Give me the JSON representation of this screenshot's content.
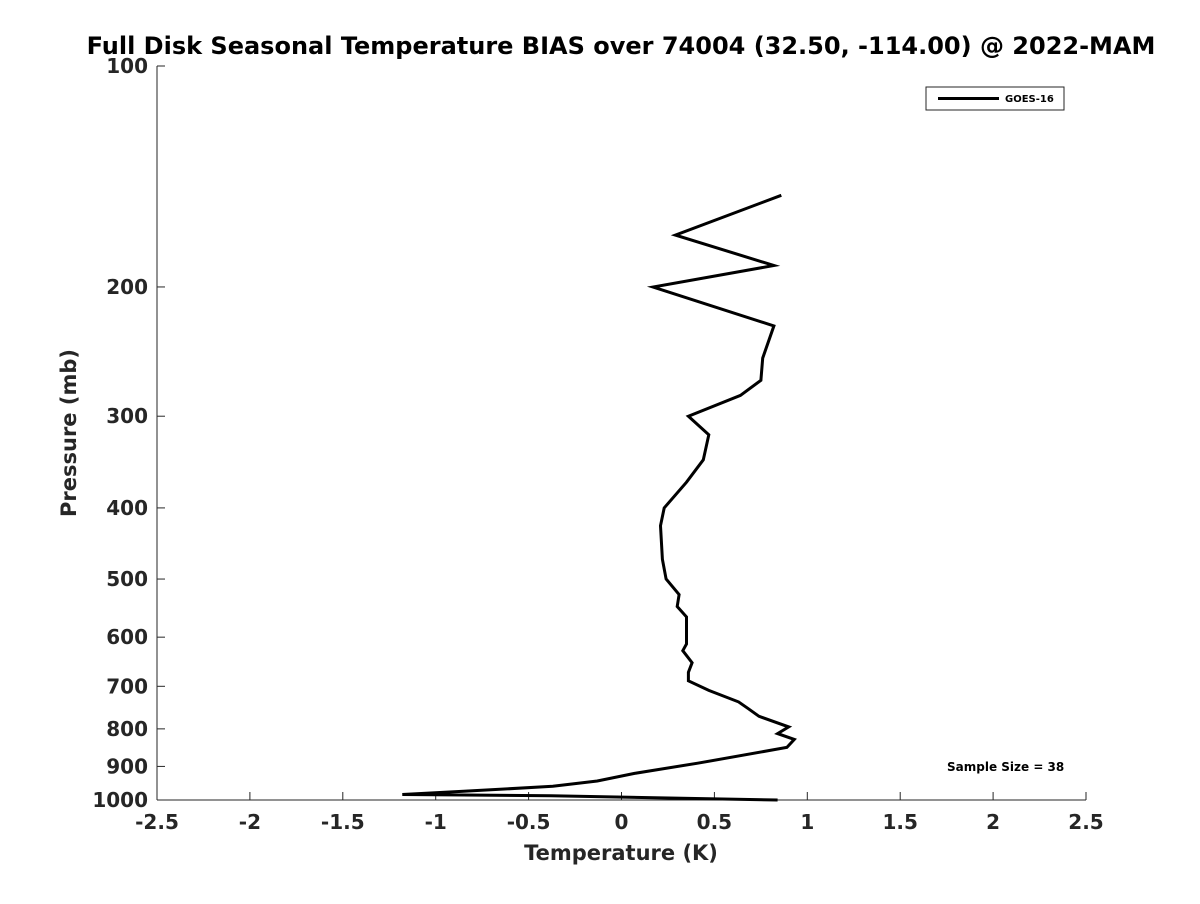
{
  "chart_data": {
    "type": "line",
    "title": "Full Disk Seasonal Temperature BIAS over 74004 (32.50, -114.00) @ 2022-MAM",
    "xlabel": "Temperature (K)",
    "ylabel": "Pressure (mb)",
    "xlim": [
      -2.5,
      2.5
    ],
    "ylim": [
      100,
      1000
    ],
    "yscale": "log",
    "yaxis_reversed": true,
    "xticks": [
      -2.5,
      -2,
      -1.5,
      -1,
      -0.5,
      0,
      0.5,
      1,
      1.5,
      2,
      2.5
    ],
    "xtick_labels": [
      "-2.5",
      "-2",
      "-1.5",
      "-1",
      "-0.5",
      "0",
      "0.5",
      "1",
      "1.5",
      "2",
      "2.5"
    ],
    "yticks": [
      100,
      200,
      300,
      400,
      500,
      600,
      700,
      800,
      900,
      1000
    ],
    "ytick_labels": [
      "100",
      "200",
      "300",
      "400",
      "500",
      "600",
      "700",
      "800",
      "900",
      "1000"
    ],
    "grid": false,
    "legend": {
      "location": "top-right",
      "entries": [
        "GOES-16"
      ]
    },
    "annotation": "Sample Size = 38",
    "series": [
      {
        "name": "GOES-16",
        "color": "#000000",
        "points": [
          [
            0.86,
            150
          ],
          [
            0.29,
            170
          ],
          [
            0.82,
            187
          ],
          [
            0.17,
            200
          ],
          [
            0.82,
            226
          ],
          [
            0.76,
            250
          ],
          [
            0.75,
            268
          ],
          [
            0.64,
            281
          ],
          [
            0.36,
            300
          ],
          [
            0.47,
            318
          ],
          [
            0.44,
            344
          ],
          [
            0.35,
            369
          ],
          [
            0.23,
            400
          ],
          [
            0.21,
            423
          ],
          [
            0.22,
            470
          ],
          [
            0.24,
            500
          ],
          [
            0.31,
            525
          ],
          [
            0.3,
            545
          ],
          [
            0.35,
            563
          ],
          [
            0.35,
            588
          ],
          [
            0.35,
            613
          ],
          [
            0.33,
            626
          ],
          [
            0.38,
            650
          ],
          [
            0.36,
            670
          ],
          [
            0.36,
            688
          ],
          [
            0.47,
            709
          ],
          [
            0.63,
            735
          ],
          [
            0.68,
            750
          ],
          [
            0.74,
            769
          ],
          [
            0.9,
            795
          ],
          [
            0.84,
            812
          ],
          [
            0.93,
            827
          ],
          [
            0.89,
            848
          ],
          [
            0.41,
            891
          ],
          [
            0.07,
            920
          ],
          [
            -0.13,
            942
          ],
          [
            -0.37,
            958
          ],
          [
            -0.85,
            973
          ],
          [
            -1.18,
            983
          ],
          [
            -0.38,
            987
          ],
          [
            0.84,
            1000
          ]
        ]
      }
    ]
  }
}
